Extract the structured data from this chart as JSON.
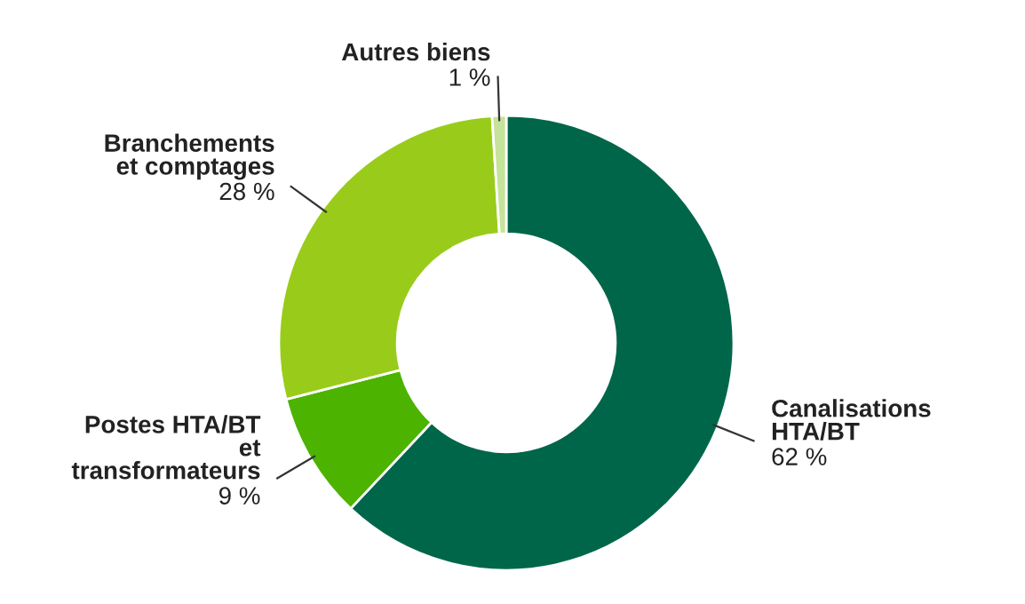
{
  "chart_data": {
    "type": "donut",
    "categories": [
      "Canalisations\nHTA/BT",
      "Postes HTA/BT\net\ntransformateurs",
      "Branchements\net comptages",
      "Autres biens"
    ],
    "values": [
      62,
      9,
      28,
      1
    ],
    "value_labels": [
      "62 %",
      "9 %",
      "28 %",
      "1 %"
    ],
    "colors": [
      "#00664a",
      "#4cb300",
      "#99cc1a",
      "#c5e39a"
    ],
    "legend": false
  }
}
